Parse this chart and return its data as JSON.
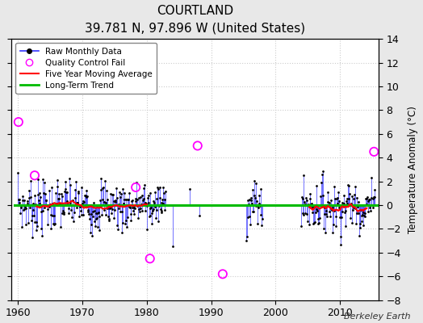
{
  "title": "COURTLAND",
  "subtitle": "39.781 N, 97.896 W (United States)",
  "ylabel": "Temperature Anomaly (°C)",
  "credit": "Berkeley Earth",
  "ylim": [
    -8,
    14
  ],
  "yticks": [
    -8,
    -6,
    -4,
    -2,
    0,
    2,
    4,
    6,
    8,
    10,
    12,
    14
  ],
  "xlim": [
    1959,
    2016
  ],
  "xticks": [
    1960,
    1970,
    1980,
    1990,
    2000,
    2010
  ],
  "bg_color": "#e8e8e8",
  "plot_bg": "#ffffff",
  "line_color": "#3333ff",
  "dot_color": "#000000",
  "qc_color": "#ff00ff",
  "ma_color": "#ff0000",
  "trend_color": "#00bb00",
  "grid_color": "#cccccc",
  "seed": 7
}
